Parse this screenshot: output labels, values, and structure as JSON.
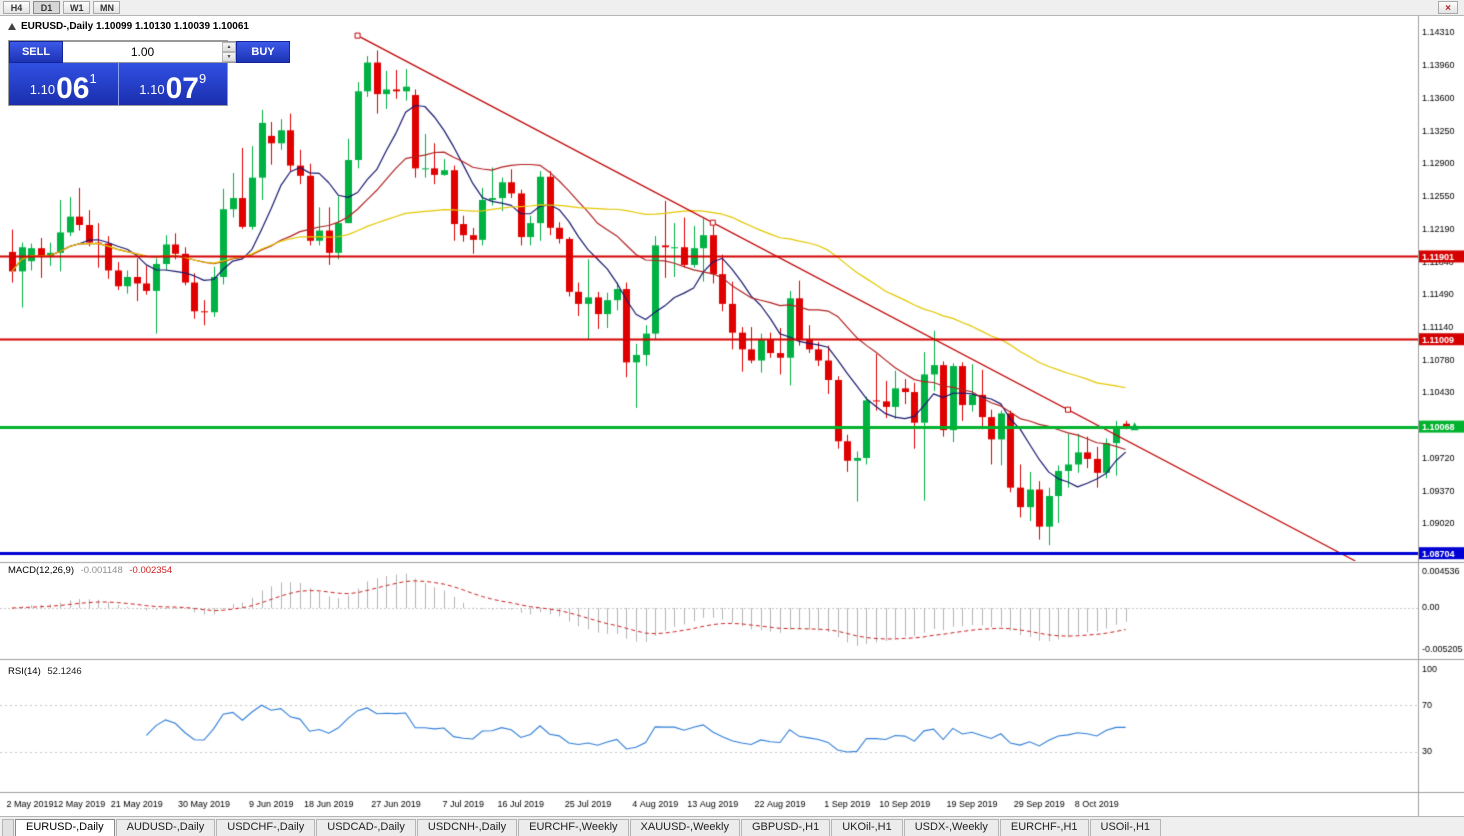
{
  "toolbar": {
    "timeframes": [
      "H4",
      "D1",
      "W1",
      "MN"
    ],
    "close_label": "×"
  },
  "chart": {
    "title": "EURUSD-,Daily  1.10099 1.10130 1.10039 1.10061"
  },
  "trade_panel": {
    "sell_label": "SELL",
    "buy_label": "BUY",
    "volume": "1.00",
    "sell_price": {
      "prefix": "1.10",
      "big": "06",
      "sup": "1"
    },
    "buy_price": {
      "prefix": "1.10",
      "big": "07",
      "sup": "9"
    }
  },
  "indicators": {
    "macd": {
      "name": "MACD(12,26,9)",
      "main_value": "-0.001148",
      "signal_value": "-0.002354"
    },
    "rsi": {
      "name": "RSI(14)",
      "value": "52.1246"
    }
  },
  "chart_data": {
    "type": "candlestick",
    "symbol": "EURUSD-,Daily",
    "colors": {
      "up": "#00b244",
      "down": "#e00000"
    },
    "candles": [
      [
        1.1195,
        1.1219,
        1.1162,
        1.1174
      ],
      [
        1.1174,
        1.1205,
        1.1135,
        1.12
      ],
      [
        1.1185,
        1.1204,
        1.1175,
        1.1199
      ],
      [
        1.1199,
        1.121,
        1.1167,
        1.119
      ],
      [
        1.119,
        1.1205,
        1.118,
        1.1194
      ],
      [
        1.1194,
        1.1251,
        1.1174,
        1.1216
      ],
      [
        1.1216,
        1.1254,
        1.1212,
        1.1233
      ],
      [
        1.1233,
        1.1264,
        1.1218,
        1.1224
      ],
      [
        1.1224,
        1.124,
        1.1201,
        1.1205
      ],
      [
        1.1205,
        1.1226,
        1.1178,
        1.1204
      ],
      [
        1.1204,
        1.1212,
        1.1166,
        1.1175
      ],
      [
        1.1175,
        1.1184,
        1.1154,
        1.1158
      ],
      [
        1.1158,
        1.1175,
        1.115,
        1.1168
      ],
      [
        1.1168,
        1.1188,
        1.1142,
        1.1161
      ],
      [
        1.1161,
        1.118,
        1.1149,
        1.1153
      ],
      [
        1.1153,
        1.1188,
        1.1107,
        1.1182
      ],
      [
        1.1182,
        1.1213,
        1.1175,
        1.1203
      ],
      [
        1.1203,
        1.1215,
        1.1187,
        1.1193
      ],
      [
        1.1193,
        1.12,
        1.1159,
        1.1162
      ],
      [
        1.1162,
        1.1172,
        1.1123,
        1.1131
      ],
      [
        1.1131,
        1.1143,
        1.1116,
        1.113
      ],
      [
        1.113,
        1.1179,
        1.1125,
        1.1168
      ],
      [
        1.1168,
        1.1263,
        1.116,
        1.1241
      ],
      [
        1.1241,
        1.128,
        1.1232,
        1.1253
      ],
      [
        1.1253,
        1.1307,
        1.122,
        1.1222
      ],
      [
        1.1222,
        1.1309,
        1.1219,
        1.1275
      ],
      [
        1.1275,
        1.1348,
        1.1251,
        1.1334
      ],
      [
        1.132,
        1.1335,
        1.1289,
        1.1312
      ],
      [
        1.1312,
        1.1338,
        1.1305,
        1.1326
      ],
      [
        1.1326,
        1.1344,
        1.1282,
        1.1288
      ],
      [
        1.1288,
        1.1305,
        1.1268,
        1.1277
      ],
      [
        1.1277,
        1.129,
        1.1202,
        1.1207
      ],
      [
        1.1207,
        1.1243,
        1.1202,
        1.1218
      ],
      [
        1.1218,
        1.1243,
        1.1181,
        1.1194
      ],
      [
        1.1194,
        1.1255,
        1.1187,
        1.1226
      ],
      [
        1.1226,
        1.1317,
        1.1226,
        1.1294
      ],
      [
        1.1294,
        1.1378,
        1.1285,
        1.1368
      ],
      [
        1.1368,
        1.1406,
        1.1362,
        1.1399
      ],
      [
        1.1399,
        1.1412,
        1.1344,
        1.1365
      ],
      [
        1.1365,
        1.139,
        1.1349,
        1.137
      ],
      [
        1.137,
        1.1391,
        1.136,
        1.1368
      ],
      [
        1.1368,
        1.1392,
        1.1358,
        1.1373
      ],
      [
        1.1364,
        1.137,
        1.1275,
        1.1285
      ],
      [
        1.1285,
        1.1322,
        1.1275,
        1.1285
      ],
      [
        1.1285,
        1.1312,
        1.1268,
        1.1278
      ],
      [
        1.1278,
        1.1295,
        1.1277,
        1.1283
      ],
      [
        1.1283,
        1.1288,
        1.1207,
        1.1225
      ],
      [
        1.1225,
        1.1234,
        1.1206,
        1.1213
      ],
      [
        1.1213,
        1.1221,
        1.1193,
        1.1208
      ],
      [
        1.1208,
        1.1264,
        1.1202,
        1.1251
      ],
      [
        1.1251,
        1.1286,
        1.1245,
        1.1253
      ],
      [
        1.1253,
        1.1275,
        1.1239,
        1.127
      ],
      [
        1.127,
        1.1284,
        1.1253,
        1.1258
      ],
      [
        1.1258,
        1.1262,
        1.1202,
        1.1211
      ],
      [
        1.1211,
        1.1234,
        1.1202,
        1.1226
      ],
      [
        1.1226,
        1.1282,
        1.1207,
        1.1276
      ],
      [
        1.1276,
        1.1282,
        1.1213,
        1.1221
      ],
      [
        1.1221,
        1.1227,
        1.1204,
        1.1209
      ],
      [
        1.1209,
        1.1211,
        1.1147,
        1.1152
      ],
      [
        1.1152,
        1.1162,
        1.1126,
        1.1139
      ],
      [
        1.1139,
        1.1187,
        1.1101,
        1.1146
      ],
      [
        1.1146,
        1.1152,
        1.1112,
        1.1128
      ],
      [
        1.1128,
        1.1151,
        1.1113,
        1.1143
      ],
      [
        1.1143,
        1.1162,
        1.1132,
        1.1155
      ],
      [
        1.1155,
        1.1162,
        1.106,
        1.1076
      ],
      [
        1.1076,
        1.1096,
        1.1027,
        1.1084
      ],
      [
        1.1084,
        1.1116,
        1.1072,
        1.1107
      ],
      [
        1.1107,
        1.1212,
        1.1101,
        1.1202
      ],
      [
        1.1202,
        1.125,
        1.1167,
        1.12
      ],
      [
        1.12,
        1.1226,
        1.1168,
        1.12
      ],
      [
        1.12,
        1.1232,
        1.1178,
        1.1181
      ],
      [
        1.1181,
        1.1223,
        1.1178,
        1.1199
      ],
      [
        1.1199,
        1.1231,
        1.1163,
        1.1213
      ],
      [
        1.1213,
        1.1228,
        1.1161,
        1.1171
      ],
      [
        1.1171,
        1.1192,
        1.1131,
        1.1139
      ],
      [
        1.1139,
        1.1163,
        1.109,
        1.1108
      ],
      [
        1.1108,
        1.1114,
        1.1066,
        1.109
      ],
      [
        1.109,
        1.1114,
        1.1075,
        1.1078
      ],
      [
        1.1078,
        1.1107,
        1.1065,
        1.11
      ],
      [
        1.11,
        1.1108,
        1.1081,
        1.1086
      ],
      [
        1.1086,
        1.1113,
        1.1063,
        1.1081
      ],
      [
        1.1081,
        1.1153,
        1.1051,
        1.1145
      ],
      [
        1.1145,
        1.1164,
        1.1094,
        1.1101
      ],
      [
        1.1101,
        1.1116,
        1.1086,
        1.109
      ],
      [
        1.109,
        1.1098,
        1.1072,
        1.1078
      ],
      [
        1.1078,
        1.1094,
        1.1042,
        1.1057
      ],
      [
        1.1057,
        1.1061,
        1.0983,
        1.0991
      ],
      [
        1.0991,
        1.0998,
        1.0958,
        1.097
      ],
      [
        1.097,
        1.098,
        1.0926,
        1.0973
      ],
      [
        1.0973,
        1.1039,
        1.0966,
        1.1035
      ],
      [
        1.1035,
        1.1085,
        1.1024,
        1.1034
      ],
      [
        1.1034,
        1.1056,
        1.1016,
        1.1028
      ],
      [
        1.1028,
        1.1067,
        1.1015,
        1.1048
      ],
      [
        1.1048,
        1.1058,
        1.1031,
        1.1044
      ],
      [
        1.1044,
        1.1054,
        1.0983,
        1.1011
      ],
      [
        1.1011,
        1.1087,
        1.0927,
        1.1063
      ],
      [
        1.1063,
        1.111,
        1.1045,
        1.1073
      ],
      [
        1.1073,
        1.1077,
        1.0996,
        1.1003
      ],
      [
        1.1003,
        1.1075,
        1.099,
        1.1072
      ],
      [
        1.1072,
        1.1076,
        1.1013,
        1.103
      ],
      [
        1.103,
        1.1074,
        1.1023,
        1.1041
      ],
      [
        1.1041,
        1.1068,
        1.1004,
        1.1017
      ],
      [
        1.1017,
        1.1025,
        1.0966,
        1.0993
      ],
      [
        1.0993,
        1.1024,
        1.0965,
        1.1021
      ],
      [
        1.1021,
        1.1024,
        1.0936,
        1.0941
      ],
      [
        1.0941,
        1.0966,
        1.0909,
        1.092
      ],
      [
        1.092,
        1.0958,
        1.0905,
        1.0939
      ],
      [
        1.0939,
        1.0948,
        1.0885,
        1.0899
      ],
      [
        1.0899,
        1.0941,
        1.0879,
        1.0932
      ],
      [
        1.0932,
        1.0965,
        1.0903,
        1.0959
      ],
      [
        1.0959,
        1.0999,
        1.0941,
        1.0966
      ],
      [
        1.0966,
        1.0999,
        1.0957,
        1.0979
      ],
      [
        1.0979,
        1.0996,
        1.0962,
        1.0972
      ],
      [
        1.0972,
        1.0985,
        1.0941,
        1.0957
      ],
      [
        1.0957,
        1.0994,
        1.0951,
        1.0989
      ],
      [
        1.0989,
        1.1013,
        1.0954,
        1.1006
      ],
      [
        1.10099,
        1.1013,
        1.10039,
        1.10061
      ]
    ],
    "moving_averages": [
      {
        "period": 8,
        "color": "#191970"
      },
      {
        "period": 20,
        "color": "#b22222"
      },
      {
        "period": 50,
        "color": "#e3c800"
      }
    ],
    "trendline": {
      "i1": 36,
      "p1": 1.1428,
      "i2": 110,
      "p2": 1.1025,
      "ray": true,
      "color": "#c00000"
    },
    "hlines": [
      {
        "price": 1.11901,
        "label": "1.11901",
        "color": "#d40000",
        "width": 2
      },
      {
        "price": 1.11009,
        "label": "1.11009",
        "color": "#d40000",
        "width": 2
      },
      {
        "price": 1.10068,
        "label": "1.10068",
        "color": "#00b22d",
        "width": 3
      },
      {
        "price": 1.08704,
        "label": "1.08704",
        "color": "#0000d4",
        "width": 3
      }
    ],
    "current_price_marker": {
      "price": 1.10061,
      "color": "#00b244"
    },
    "axis": {
      "price_ticks": [
        "1.14310",
        "1.13960",
        "1.13600",
        "1.13250",
        "1.12900",
        "1.12550",
        "1.12190",
        "1.11840",
        "1.11490",
        "1.11140",
        "1.10780",
        "1.10430",
        "1.10080",
        "1.09720",
        "1.09370",
        "1.09020",
        "1.08670"
      ]
    },
    "macd": {
      "params": "12,26,9",
      "axis_ticks": [
        "0.004536",
        "0.00",
        "-0.005205"
      ],
      "histogram_color": "#b4b4b4",
      "signal_color": "#cc2222"
    },
    "rsi": {
      "period": 14,
      "axis_ticks": [
        "100",
        "70",
        "30"
      ],
      "levels": [
        70,
        30
      ],
      "color": "#2f7ed8"
    },
    "time_axis_labels": [
      [
        0,
        "2 May 2019"
      ],
      [
        7,
        "12 May 2019"
      ],
      [
        13,
        "21 May 2019"
      ],
      [
        20,
        "30 May 2019"
      ],
      [
        27,
        "9 Jun 2019"
      ],
      [
        33,
        "18 Jun 2019"
      ],
      [
        40,
        "27 Jun 2019"
      ],
      [
        47,
        "7 Jul 2019"
      ],
      [
        53,
        "16 Jul 2019"
      ],
      [
        60,
        "25 Jul 2019"
      ],
      [
        67,
        "4 Aug 2019"
      ],
      [
        73,
        "13 Aug 2019"
      ],
      [
        80,
        "22 Aug 2019"
      ],
      [
        87,
        "1 Sep 2019"
      ],
      [
        93,
        "10 Sep 2019"
      ],
      [
        100,
        "19 Sep 2019"
      ],
      [
        107,
        "29 Sep 2019"
      ],
      [
        113,
        "8 Oct 2019"
      ]
    ]
  },
  "tabs": [
    "EURUSD-,Daily",
    "AUDUSD-,Daily",
    "USDCHF-,Daily",
    "USDCAD-,Daily",
    "USDCNH-,Daily",
    "EURCHF-,Weekly",
    "XAUUSD-,Weekly",
    "GBPUSD-,H1",
    "UKOil-,H1",
    "USDX-,Weekly",
    "EURCHF-,H1",
    "USOil-,H1"
  ]
}
